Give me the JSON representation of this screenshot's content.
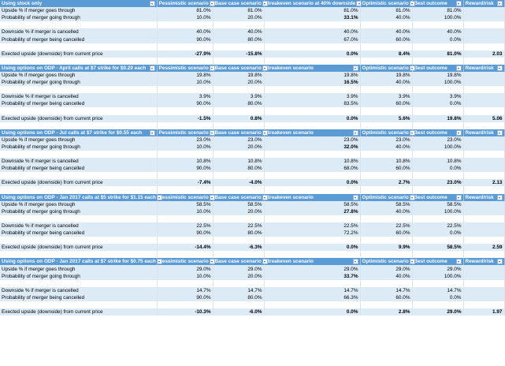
{
  "sections": [
    {
      "title": "Using stock only",
      "headers": [
        "Pessimistic scenario",
        "Base case scenario",
        "Breakeven scenario at 40% downside",
        "Optimistic scenario",
        "Best outcome",
        "Reward/risk"
      ],
      "rows": [
        {
          "label": "Upside % if merger goes through",
          "values": [
            "81.0%",
            "81.0%",
            "81.0%",
            "81.0%",
            "81.0%",
            ""
          ]
        },
        {
          "label": "Probability of merger going through",
          "values": [
            "10.0%",
            "20.0%",
            "33.1%",
            "40.0%",
            "100.0%",
            ""
          ]
        },
        {
          "label": "",
          "values": [
            "",
            "",
            "",
            "",
            "",
            ""
          ]
        },
        {
          "label": "Downside % if merger is cancelled",
          "values": [
            "40.0%",
            "40.0%",
            "40.0%",
            "40.0%",
            "40.0%",
            ""
          ]
        },
        {
          "label": "Probability of merger being cancelled",
          "values": [
            "90.0%",
            "80.0%",
            "67.0%",
            "60.0%",
            "0.0%",
            ""
          ]
        },
        {
          "label": "",
          "values": [
            "",
            "",
            "",
            "",
            "",
            ""
          ]
        },
        {
          "label": "Exected upside (downside) from current price",
          "values": [
            "-27.9%",
            "-15.8%",
            "0.0%",
            "8.4%",
            "81.0%",
            "2.03"
          ]
        }
      ]
    },
    {
      "title": "Using options on ODP - April calls at $7 strike for $0.20 each",
      "headers": [
        "Pessimistic scenario",
        "Base case scenario",
        "Breakeven scenario",
        "Optimistic scenario",
        "Best outcome",
        "Reward/risk"
      ],
      "rows": [
        {
          "label": "Upside % if merger goes through",
          "values": [
            "19.8%",
            "19.8%",
            "19.8%",
            "19.8%",
            "19.8%",
            ""
          ]
        },
        {
          "label": "Probability of merger going through",
          "values": [
            "10.0%",
            "20.0%",
            "16.5%",
            "40.0%",
            "100.0%",
            ""
          ]
        },
        {
          "label": "",
          "values": [
            "",
            "",
            "",
            "",
            "",
            ""
          ]
        },
        {
          "label": "Downside % if merger is cancelled",
          "values": [
            "3.9%",
            "3.9%",
            "3.9%",
            "3.9%",
            "3.9%",
            ""
          ]
        },
        {
          "label": "Probability of merger being cancelled",
          "values": [
            "90.0%",
            "80.0%",
            "83.5%",
            "60.0%",
            "0.0%",
            ""
          ]
        },
        {
          "label": "",
          "values": [
            "",
            "",
            "",
            "",
            "",
            ""
          ]
        },
        {
          "label": "Exected upside (downside) from current price",
          "values": [
            "-1.5%",
            "0.8%",
            "0.0%",
            "5.6%",
            "19.8%",
            "5.06"
          ]
        }
      ]
    },
    {
      "title": "Using options on ODP - Jul calls at $7 strike for $0.55 each",
      "headers": [
        "Pessimistic scenario",
        "Base case scenario",
        "Breakeven scenario",
        "Optimistic scenario",
        "Best outcome",
        "Reward/risk"
      ],
      "rows": [
        {
          "label": "Upside % if merger goes through",
          "values": [
            "23.0%",
            "23.0%",
            "23.0%",
            "23.0%",
            "23.0%",
            ""
          ]
        },
        {
          "label": "Probability of merger going through",
          "values": [
            "10.0%",
            "20.0%",
            "32.0%",
            "40.0%",
            "100.0%",
            ""
          ]
        },
        {
          "label": "",
          "values": [
            "",
            "",
            "",
            "",
            "",
            ""
          ]
        },
        {
          "label": "Downside % if merger is cancelled",
          "values": [
            "10.8%",
            "10.8%",
            "10.8%",
            "10.8%",
            "10.8%",
            ""
          ]
        },
        {
          "label": "Probability of merger being cancelled",
          "values": [
            "90.0%",
            "80.0%",
            "68.0%",
            "60.0%",
            "0.0%",
            ""
          ]
        },
        {
          "label": "",
          "values": [
            "",
            "",
            "",
            "",
            "",
            ""
          ]
        },
        {
          "label": "Exected upside (downside) from current price",
          "values": [
            "-7.4%",
            "-4.0%",
            "0.0%",
            "2.7%",
            "23.0%",
            "2.13"
          ]
        }
      ]
    },
    {
      "title": "Using options on ODP - Jan 2017 calls at $5 strike for $1.15 each",
      "headers": [
        "Pessimistic scenario",
        "Base case scenario",
        "Breakeven scenario",
        "Optimistic scenario",
        "Best outcome",
        "Reward/risk"
      ],
      "rows": [
        {
          "label": "Upside % if merger goes through",
          "values": [
            "58.5%",
            "58.5%",
            "58.5%",
            "58.5%",
            "58.5%",
            ""
          ]
        },
        {
          "label": "Probability of merger going through",
          "values": [
            "10.0%",
            "20.0%",
            "27.8%",
            "40.0%",
            "100.0%",
            ""
          ]
        },
        {
          "label": "",
          "values": [
            "",
            "",
            "",
            "",
            "",
            ""
          ]
        },
        {
          "label": "Downside % if merger is cancelled",
          "values": [
            "22.5%",
            "22.5%",
            "22.5%",
            "22.5%",
            "22.5%",
            ""
          ]
        },
        {
          "label": "Probability of merger being cancelled",
          "values": [
            "90.0%",
            "80.0%",
            "72.2%",
            "60.0%",
            "0.0%",
            ""
          ]
        },
        {
          "label": "",
          "values": [
            "",
            "",
            "",
            "",
            "",
            ""
          ]
        },
        {
          "label": "Exected upside (downside) from current price",
          "values": [
            "-14.4%",
            "-6.3%",
            "0.0%",
            "9.9%",
            "58.5%",
            "2.59"
          ]
        }
      ]
    },
    {
      "title": "Using options on ODP - Jan 2017 calls at $7 strike for $0.75 each",
      "headers": [
        "Pessimistic scenario",
        "Base case scenario",
        "Breakeven scenario",
        "Optimistic scenario",
        "Best outcome",
        "Reward/risk"
      ],
      "rows": [
        {
          "label": "Upside % if merger goes through",
          "values": [
            "29.0%",
            "29.0%",
            "29.0%",
            "29.0%",
            "29.0%",
            ""
          ]
        },
        {
          "label": "Probability of merger going through",
          "values": [
            "10.0%",
            "20.0%",
            "33.7%",
            "40.0%",
            "100.0%",
            ""
          ]
        },
        {
          "label": "",
          "values": [
            "",
            "",
            "",
            "",
            "",
            ""
          ]
        },
        {
          "label": "Downside % if merger is cancelled",
          "values": [
            "14.7%",
            "14.7%",
            "14.7%",
            "14.7%",
            "14.7%",
            ""
          ]
        },
        {
          "label": "Probability of merger being cancelled",
          "values": [
            "90.0%",
            "80.0%",
            "66.3%",
            "60.0%",
            "0.0%",
            ""
          ]
        },
        {
          "label": "",
          "values": [
            "",
            "",
            "",
            "",
            "",
            ""
          ]
        },
        {
          "label": "Exected upside (downside) from current price",
          "values": [
            "-10.3%",
            "-6.0%",
            "0.0%",
            "2.8%",
            "29.0%",
            "1.97"
          ]
        }
      ]
    }
  ],
  "colors": {
    "header": "#5b9bd5",
    "band": "#ddebf7"
  },
  "icons": {
    "filter": "dropdown-filter-icon"
  }
}
